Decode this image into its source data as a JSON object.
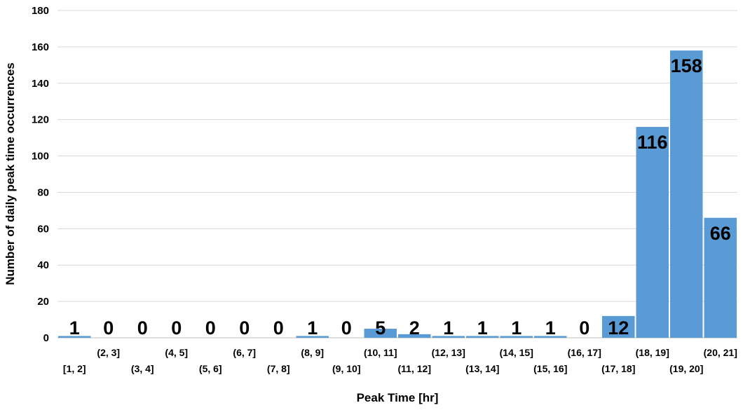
{
  "chart_data": {
    "type": "bar",
    "title": "",
    "xlabel": "Peak Time [hr]",
    "ylabel": "Number of daily peak time occurrences",
    "ylim": [
      0,
      180
    ],
    "yticks": [
      0,
      20,
      40,
      60,
      80,
      100,
      120,
      140,
      160,
      180
    ],
    "grid": true,
    "legend": "none",
    "bar_color": "#5b9bd5",
    "categories": [
      "[1, 2]",
      "(2, 3]",
      "(3, 4]",
      "(4, 5]",
      "(5, 6]",
      "(6, 7]",
      "(7, 8]",
      "(8, 9]",
      "(9, 10]",
      "(10, 11]",
      "(11, 12]",
      "(12, 13]",
      "(13, 14]",
      "(14, 15]",
      "(15, 16]",
      "(16, 17]",
      "(17, 18]",
      "(18, 19]",
      "(19, 20]",
      "(20, 21]"
    ],
    "values": [
      1,
      0,
      0,
      0,
      0,
      0,
      0,
      1,
      0,
      5,
      2,
      1,
      1,
      1,
      1,
      0,
      12,
      116,
      158,
      66
    ],
    "data_labels": [
      "1",
      "0",
      "0",
      "0",
      "0",
      "0",
      "0",
      "1",
      "0",
      "5",
      "2",
      "1",
      "1",
      "1",
      "1",
      "0",
      "12",
      "116",
      "158",
      "66"
    ]
  }
}
